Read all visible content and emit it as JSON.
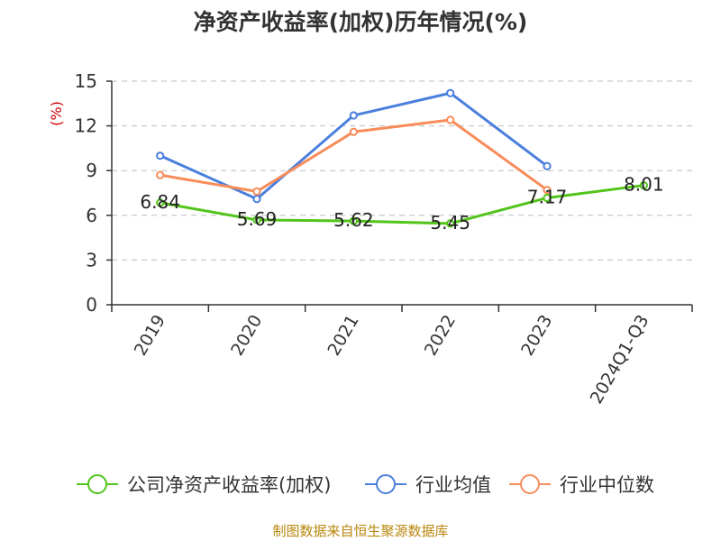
{
  "chart_data": {
    "type": "line",
    "title": "净资产收益率(加权)历年情况(%)",
    "ylabel": "(%)",
    "xlabel": "",
    "categories": [
      "2019",
      "2020",
      "2021",
      "2022",
      "2023",
      "2024Q1-Q3"
    ],
    "ylim": [
      0,
      15
    ],
    "yticks": [
      0,
      3,
      6,
      9,
      12,
      15
    ],
    "grid": true,
    "legend_position": "bottom",
    "series": [
      {
        "name": "公司净资产收益率(加权)",
        "color": "#52c41a",
        "values": [
          6.84,
          5.69,
          5.62,
          5.45,
          7.17,
          8.01
        ],
        "data_labels": [
          "6.84",
          "5.69",
          "5.62",
          "5.45",
          "7.17",
          "8.01"
        ]
      },
      {
        "name": "行业均值",
        "color": "#4a7fdc",
        "values": [
          10.0,
          7.1,
          12.7,
          14.2,
          9.3,
          null
        ]
      },
      {
        "name": "行业中位数",
        "color": "#f88c5a",
        "values": [
          8.7,
          7.6,
          11.6,
          12.4,
          7.7,
          null
        ]
      }
    ]
  },
  "footer": {
    "source": "制图数据来自恒生聚源数据库"
  }
}
